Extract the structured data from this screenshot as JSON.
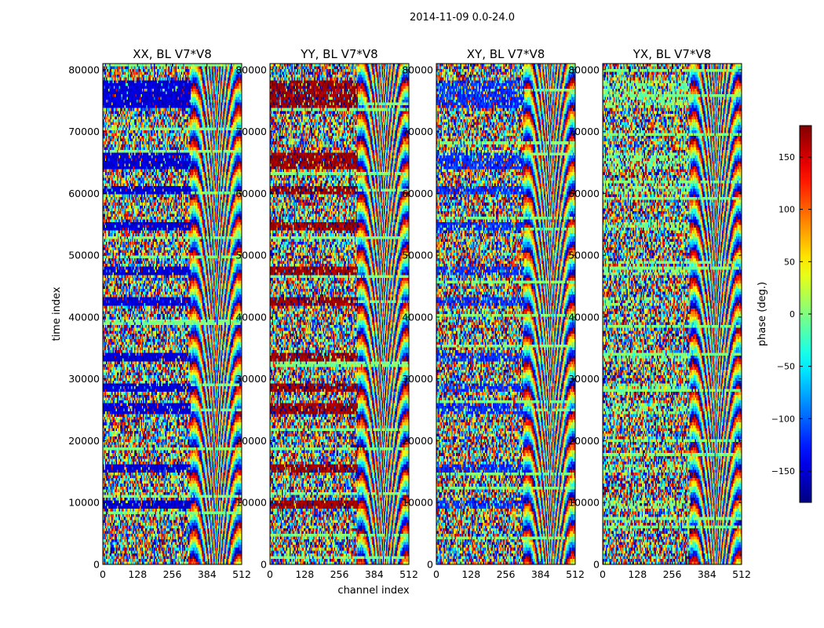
{
  "chart_data": {
    "type": "heatmap",
    "suptitle": "2014-11-09 0.0-24.0",
    "xlabel": "channel index",
    "ylabel": "time index",
    "xlim": [
      0,
      512
    ],
    "ylim": [
      0,
      81000
    ],
    "xticks": [
      0,
      128,
      256,
      384,
      512
    ],
    "yticks": [
      0,
      10000,
      20000,
      30000,
      40000,
      50000,
      60000,
      70000,
      80000
    ],
    "colormap": "jet",
    "panels": [
      {
        "title": "XX, BL V7*V8",
        "band_bias": 0.55,
        "band_value": -150
      },
      {
        "title": "YY, BL V7*V8",
        "band_bias": 0.55,
        "band_value": 170
      },
      {
        "title": "XY, BL V7*V8",
        "band_bias": 0.35,
        "band_value": -120
      },
      {
        "title": "YX, BL V7*V8",
        "band_bias": 0.15,
        "band_value": 0
      }
    ],
    "band_time_ranges": [
      [
        74000,
        78000
      ],
      [
        24500,
        26000
      ],
      [
        47000,
        48000
      ],
      [
        64000,
        66500
      ],
      [
        28000,
        29000
      ],
      [
        42000,
        43000
      ],
      [
        54000,
        55000
      ],
      [
        15000,
        16000
      ],
      [
        9000,
        10000
      ],
      [
        33000,
        34000
      ],
      [
        60000,
        61000
      ]
    ],
    "colorbar": {
      "label": "phase (deg.)",
      "min": -180,
      "max": 180,
      "ticks": [
        -150,
        -100,
        -50,
        0,
        50,
        100,
        150
      ]
    }
  }
}
